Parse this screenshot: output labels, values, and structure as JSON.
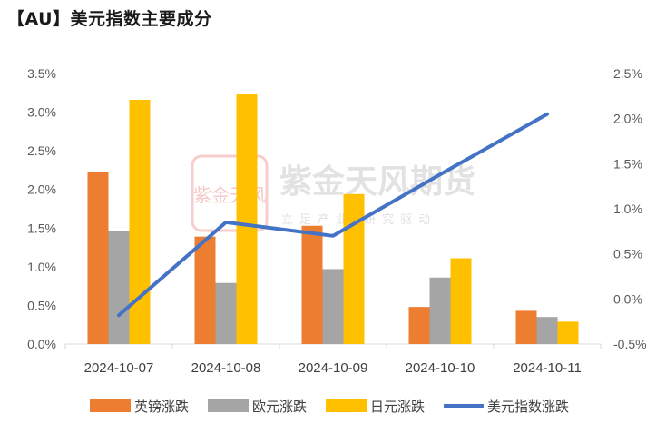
{
  "title": "【AU】美元指数主要成分",
  "watermark": {
    "name": "紫金天风期货",
    "slogan": "立足产业 研究驱动",
    "seal": "紫金天风"
  },
  "colors": {
    "gbp": "#ed7d31",
    "eur": "#a5a5a5",
    "jpy": "#ffc000",
    "dxy": "#4472c4",
    "axis": "#d9d9d9",
    "seal": "#f4b8b8"
  },
  "chart_data": {
    "type": "bar",
    "categories": [
      "2024-10-07",
      "2024-10-08",
      "2024-10-09",
      "2024-10-10",
      "2024-10-11"
    ],
    "series": [
      {
        "name": "英镑涨跌",
        "type": "bar",
        "axis": "left",
        "values": [
          2.23,
          1.39,
          1.53,
          0.48,
          0.43
        ]
      },
      {
        "name": "欧元涨跌",
        "type": "bar",
        "axis": "left",
        "values": [
          1.46,
          0.79,
          0.97,
          0.86,
          0.35
        ]
      },
      {
        "name": "日元涨跌",
        "type": "bar",
        "axis": "left",
        "values": [
          3.16,
          3.23,
          1.94,
          1.11,
          0.29
        ]
      },
      {
        "name": "美元指数涨跌",
        "type": "line",
        "axis": "right",
        "values": [
          -0.18,
          0.85,
          0.7,
          1.38,
          2.05
        ]
      }
    ],
    "y_left": {
      "ylim": [
        0,
        3.5
      ],
      "ticks": [
        "0.0%",
        "0.5%",
        "1.0%",
        "1.5%",
        "2.0%",
        "2.5%",
        "3.0%",
        "3.5%"
      ]
    },
    "y_right": {
      "ylim": [
        -0.5,
        2.5
      ],
      "ticks": [
        "-0.5%",
        "0.0%",
        "0.5%",
        "1.0%",
        "1.5%",
        "2.0%",
        "2.5%"
      ]
    },
    "grid": false,
    "legend": "bottom"
  }
}
